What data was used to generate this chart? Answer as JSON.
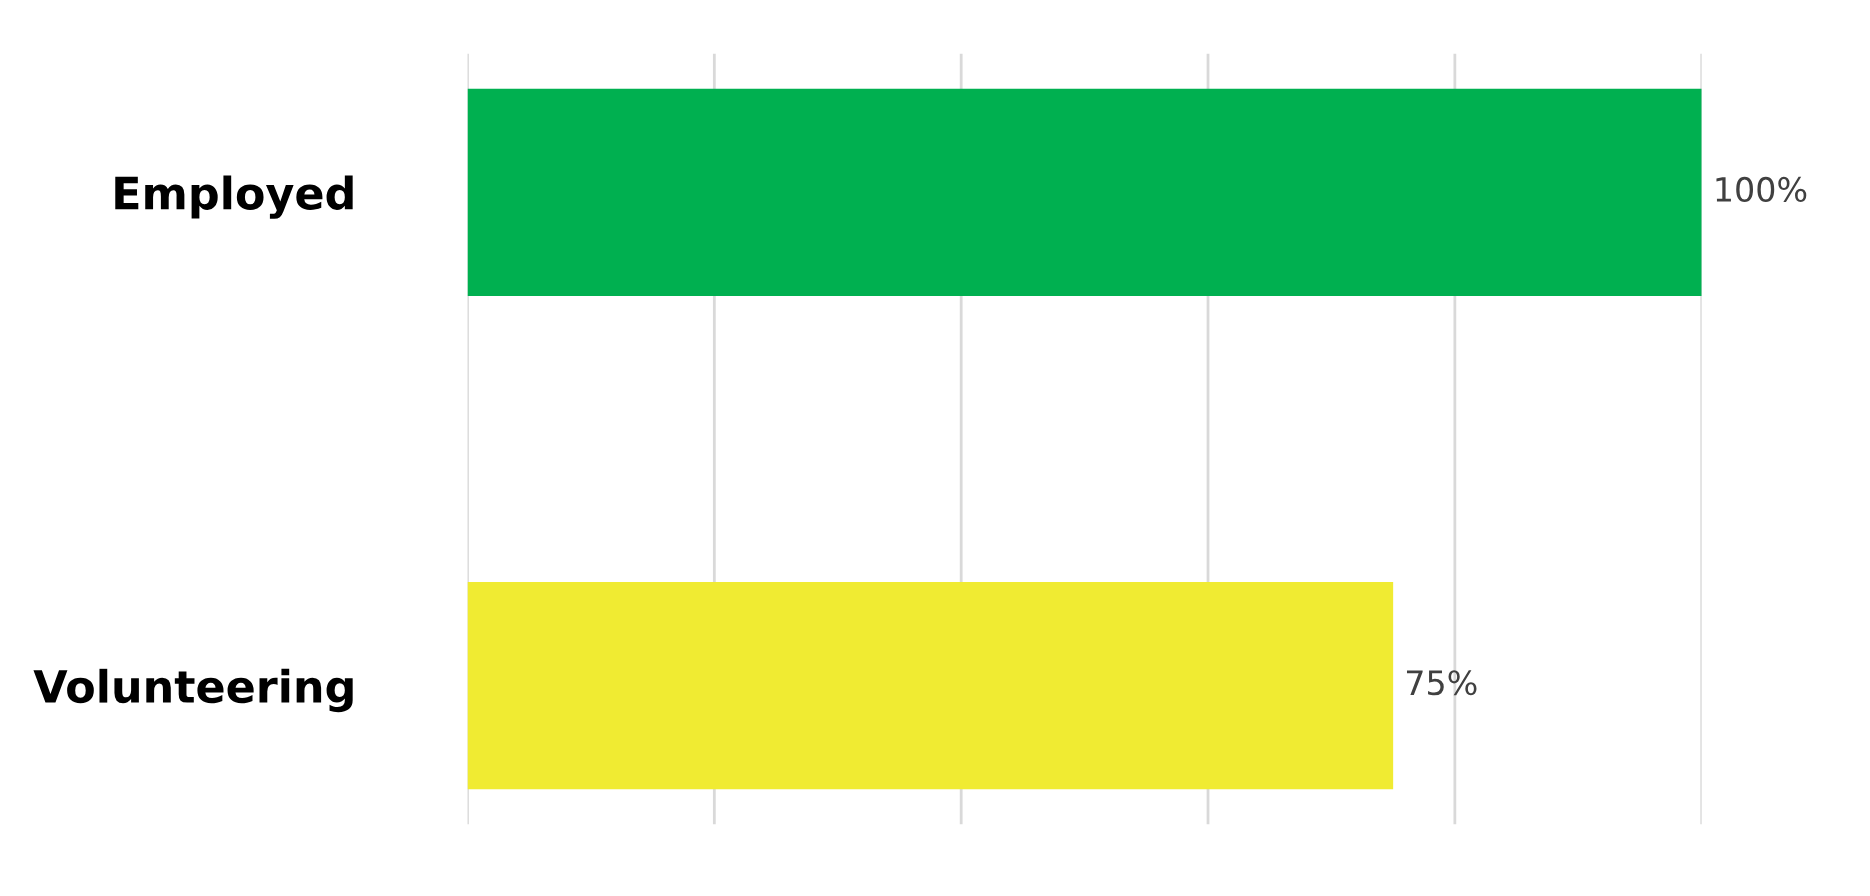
{
  "chart_data": {
    "type": "bar",
    "orientation": "horizontal",
    "categories": [
      "Employed",
      "Volunteering"
    ],
    "values": [
      100,
      75
    ],
    "colors": [
      "#00b050",
      "#f0eb32"
    ],
    "value_labels": [
      "100%",
      "75%"
    ],
    "xlim": [
      0,
      100
    ],
    "xticks": [
      {
        "value": 0,
        "label": null
      },
      {
        "value": 20,
        "label": null
      },
      {
        "value": 40,
        "label": null
      },
      {
        "value": 60,
        "label": null
      },
      {
        "value": 80,
        "label": null
      },
      {
        "value": 100,
        "label": null
      }
    ],
    "grid": "x"
  }
}
